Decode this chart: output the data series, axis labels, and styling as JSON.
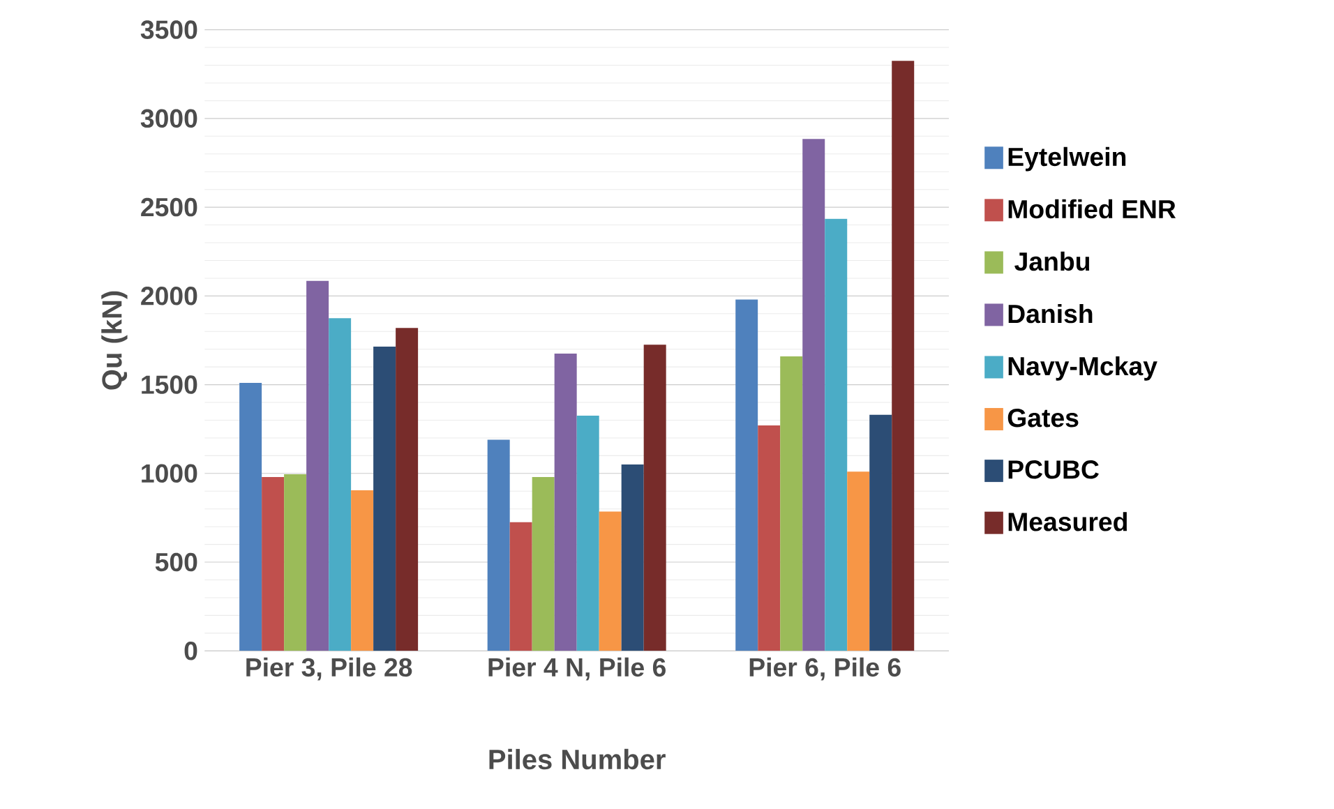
{
  "chart_data": {
    "type": "bar",
    "xlabel": "Piles Number",
    "ylabel": "Qu (kN)",
    "categories": [
      "Pier 3,   Pile 28",
      "Pier 4 N,  Pile 6",
      "Pier 6, Pile 6"
    ],
    "series": [
      {
        "name": "Eytelwein",
        "color": "#4f81bd",
        "values": [
          1510,
          1190,
          1980
        ]
      },
      {
        "name": "Modified ENR",
        "color": "#c0504d",
        "values": [
          980,
          725,
          1270
        ]
      },
      {
        "name": " Janbu",
        "color": "#9bbb59",
        "values": [
          995,
          980,
          1660
        ]
      },
      {
        "name": "Danish",
        "color": "#8064a2",
        "values": [
          2085,
          1675,
          2885
        ]
      },
      {
        "name": "Navy-Mckay",
        "color": "#4bacc6",
        "values": [
          1875,
          1325,
          2435
        ]
      },
      {
        "name": "Gates",
        "color": "#f79646",
        "values": [
          905,
          785,
          1010
        ]
      },
      {
        "name": "PCUBC",
        "color": "#2c4d75",
        "values": [
          1715,
          1050,
          1330
        ]
      },
      {
        "name": "Measured",
        "color": "#772c2a",
        "values": [
          1820,
          1725,
          3325
        ]
      }
    ],
    "ylim": [
      0,
      3500
    ],
    "yticks": [
      0,
      500,
      1000,
      1500,
      2000,
      2500,
      3000,
      3500
    ],
    "grid": "y",
    "legend": "right"
  }
}
